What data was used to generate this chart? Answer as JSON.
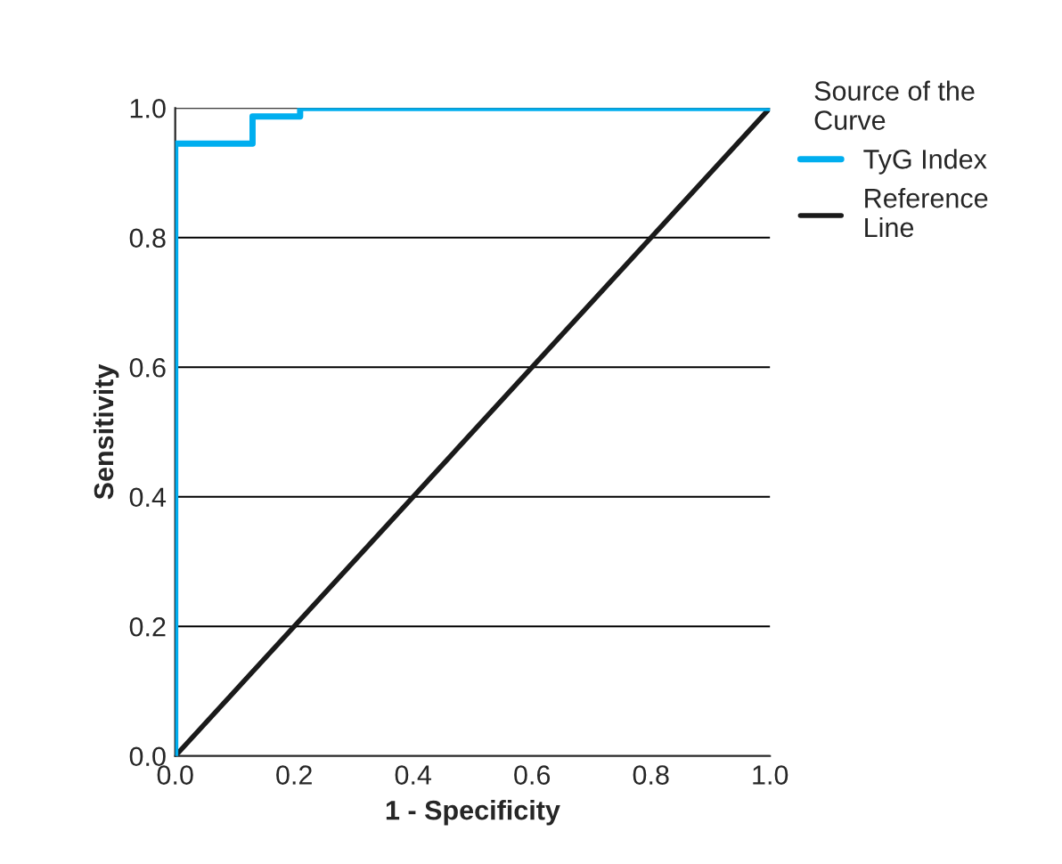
{
  "chart_data": {
    "type": "step",
    "xlabel": "1 - Specificity",
    "ylabel": "Sensitivity",
    "legend_title": "Source of the\nCurve",
    "legend": "top right",
    "xlim": [
      0,
      1
    ],
    "ylim": [
      0,
      1
    ],
    "xticks": [
      {
        "value": 0,
        "label": "0.0"
      },
      {
        "value": 0.2,
        "label": "0.2"
      },
      {
        "value": 0.4,
        "label": "0.4"
      },
      {
        "value": 0.6,
        "label": "0.6"
      },
      {
        "value": 0.8,
        "label": "0.8"
      },
      {
        "value": 1,
        "label": "1.0"
      }
    ],
    "yticks": [
      {
        "value": 0,
        "label": "0.0"
      },
      {
        "value": 0.2,
        "label": "0.2"
      },
      {
        "value": 0.4,
        "label": "0.4"
      },
      {
        "value": 0.6,
        "label": "0.6"
      },
      {
        "value": 0.8,
        "label": "0.8"
      },
      {
        "value": 1,
        "label": "1.0"
      }
    ],
    "grid": "y",
    "marker": "none",
    "series": [
      {
        "name": "TyG Index",
        "color": "#00aeef",
        "x": [
          0,
          0,
          0.13,
          0.13,
          0.21,
          0.21,
          1
        ],
        "values": [
          0,
          0.945,
          0.945,
          0.987,
          0.987,
          1,
          1
        ]
      },
      {
        "name": "Reference\nLine",
        "color": "#1a1a1a",
        "type": "line",
        "x": [
          0,
          1
        ],
        "values": [
          0,
          1
        ]
      }
    ]
  }
}
